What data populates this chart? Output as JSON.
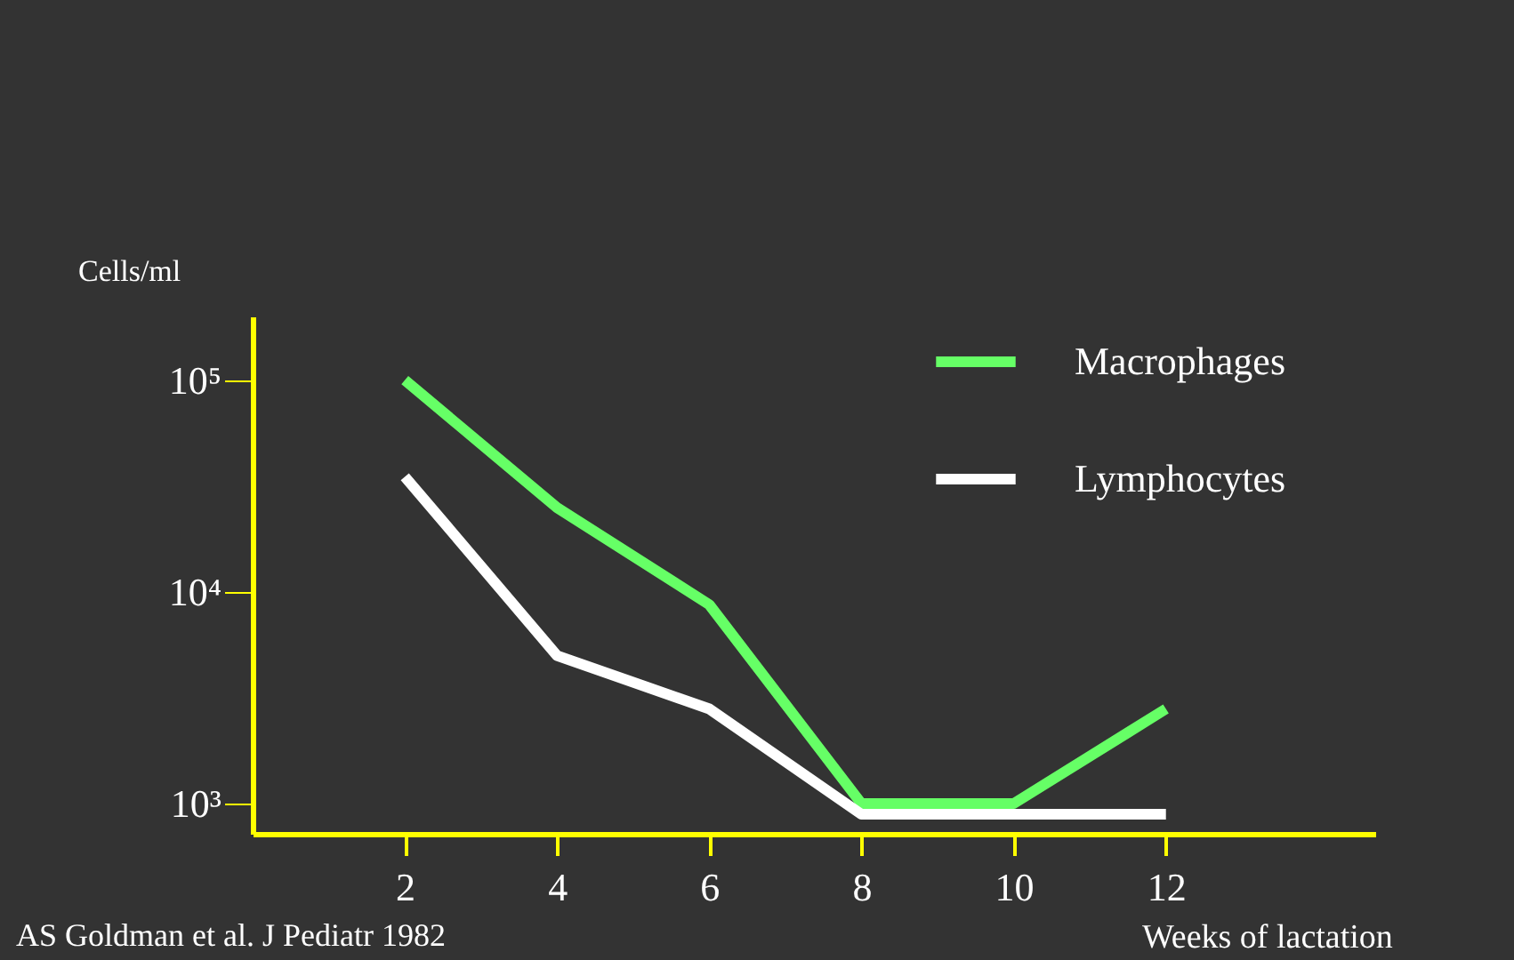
{
  "chart_data": {
    "type": "line",
    "xlabel": "Weeks of lactation",
    "ylabel": "Cells/ml",
    "annotations": [
      "AS Goldman  et al. J Pediatr 1982"
    ],
    "x": [
      2,
      4,
      6,
      8,
      10,
      12
    ],
    "series": [
      {
        "name": "Macrophages",
        "color": "#66ff66",
        "values": [
          100000,
          25000,
          8700,
          1000,
          1000,
          2800
        ]
      },
      {
        "name": "Lymphocytes",
        "color": "#ffffff",
        "values": [
          35000,
          5000,
          2800,
          890,
          890,
          890
        ]
      }
    ],
    "log": "y",
    "xlim": [
      0,
      14.75
    ],
    "ylim": [
      720,
      200000
    ],
    "xticks": [
      2,
      4,
      6,
      8,
      10,
      12
    ],
    "yticks": [
      {
        "value": 1000,
        "label": "10³"
      },
      {
        "value": 10000,
        "label": "10⁴"
      },
      {
        "value": 100000,
        "label": "10⁵"
      }
    ],
    "grid": false,
    "legend": "top right",
    "marker": "none",
    "line_style": "solid"
  }
}
